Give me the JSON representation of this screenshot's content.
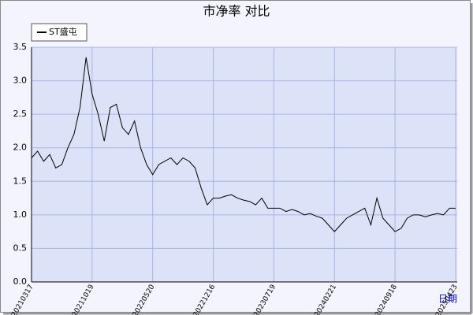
{
  "chart_data": {
    "type": "line",
    "title": "市净率  对比",
    "x_label": "日期",
    "categories": [
      "20210317",
      null,
      null,
      null,
      null,
      null,
      null,
      null,
      null,
      null,
      "20211019",
      null,
      null,
      null,
      null,
      null,
      null,
      null,
      null,
      null,
      "20220520",
      null,
      null,
      null,
      null,
      null,
      null,
      null,
      null,
      null,
      "20221216",
      null,
      null,
      null,
      null,
      null,
      null,
      null,
      null,
      null,
      "20230719",
      null,
      null,
      null,
      null,
      null,
      null,
      null,
      null,
      null,
      "20240221",
      null,
      null,
      null,
      null,
      null,
      null,
      null,
      null,
      null,
      "20240918",
      null,
      null,
      null,
      null,
      null,
      null,
      null,
      null,
      null,
      "20250423"
    ],
    "series": [
      {
        "name": "ST盛屯",
        "color": "#000000",
        "values": [
          1.85,
          1.95,
          1.8,
          1.9,
          1.7,
          1.75,
          2.0,
          2.2,
          2.6,
          3.35,
          2.8,
          2.5,
          2.1,
          2.6,
          2.65,
          2.3,
          2.2,
          2.4,
          2.0,
          1.75,
          1.6,
          1.75,
          1.8,
          1.85,
          1.75,
          1.85,
          1.8,
          1.7,
          1.4,
          1.15,
          1.25,
          1.25,
          1.28,
          1.3,
          1.25,
          1.22,
          1.2,
          1.15,
          1.25,
          1.1,
          1.1,
          1.1,
          1.05,
          1.08,
          1.05,
          1.0,
          1.02,
          0.98,
          0.95,
          0.85,
          0.75,
          0.85,
          0.95,
          1.0,
          1.05,
          1.1,
          0.85,
          1.25,
          0.95,
          0.85,
          0.75,
          0.8,
          0.95,
          1.0,
          1.0,
          0.97,
          1.0,
          1.02,
          1.0,
          1.1,
          1.1
        ]
      }
    ],
    "ylim": [
      0,
      3.5
    ],
    "yticks": [
      {
        "value": 0,
        "label": "0.0"
      },
      {
        "value": 0.5,
        "label": "0.5"
      },
      {
        "value": 1,
        "label": "1.0"
      },
      {
        "value": 1.5,
        "label": "1.5"
      },
      {
        "value": 2,
        "label": "2.0"
      },
      {
        "value": 2.5,
        "label": "2.5"
      },
      {
        "value": 3,
        "label": "3.0"
      },
      {
        "value": 3.5,
        "label": "3.5"
      }
    ],
    "grid": true
  }
}
